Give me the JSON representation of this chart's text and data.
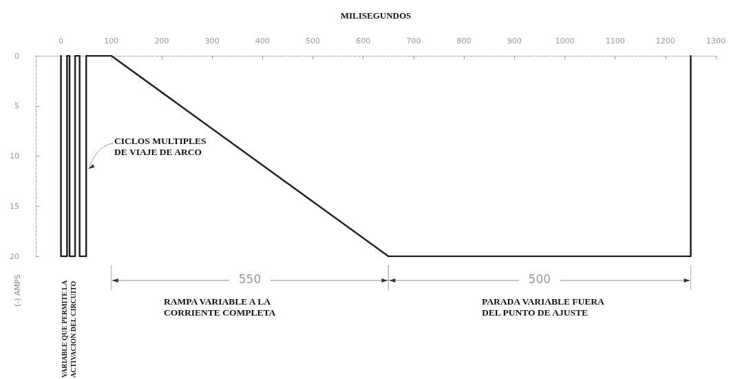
{
  "chart_data": {
    "type": "line",
    "xlabel": "MILISEGUNDOS",
    "ylabel": "(-) AMPS",
    "x": [
      0,
      0,
      12,
      12,
      17,
      17,
      28,
      28,
      37,
      37,
      50,
      50,
      100,
      650,
      1250,
      1250
    ],
    "series": [
      {
        "color": "#222222",
        "values": [
          0,
          20,
          20,
          0,
          0,
          20,
          20,
          0,
          0,
          20,
          20,
          0,
          0,
          20,
          20,
          0
        ]
      }
    ],
    "xlim": [
      -50,
      1300
    ],
    "xticks": [
      0,
      100,
      200,
      300,
      400,
      500,
      600,
      700,
      800,
      900,
      1000,
      1100,
      1200,
      1300
    ],
    "ylim": [
      20,
      0
    ],
    "yticks": [
      0,
      5,
      10,
      15,
      20
    ],
    "grid": false,
    "marker": "none",
    "line_style": "solid",
    "annotations": [
      "CICLOS MULTIPLES\nDE VIAJE DE ARCO",
      "VARIABLE QUE PERMITE LA\nACTIVACION DEL CIRCUITO",
      "550",
      "500",
      "RAMPA VARIABLE A LA\nCORRIENTE COMPLETA",
      "PARADA VARIABLE FUERA\nDEL PUNTO DE AJUSTE"
    ]
  }
}
